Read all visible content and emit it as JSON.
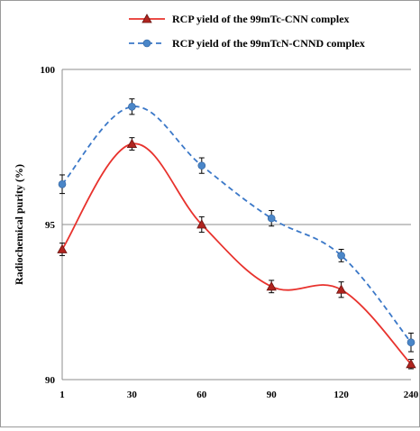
{
  "chart_data": {
    "type": "line",
    "title": "",
    "xlabel": "",
    "ylabel": "Radiochemical purity  (%)",
    "categories": [
      "1",
      "30",
      "60",
      "90",
      "120",
      "240"
    ],
    "ylim": [
      90,
      100
    ],
    "yticks": [
      90,
      95,
      100
    ],
    "grid": "horizontal",
    "legend_position": "top",
    "series": [
      {
        "name": "RCP yield of the 99mTc-CNN complex",
        "values": [
          94.2,
          97.6,
          95.0,
          93.0,
          92.9,
          90.5
        ],
        "errors": [
          0.2,
          0.2,
          0.25,
          0.2,
          0.25,
          0.15
        ],
        "color": "#e8322d",
        "marker": "triangle",
        "marker_color": "#b0241f",
        "line_style": "solid"
      },
      {
        "name": "RCP yield of the 99mTcN-CNND complex",
        "values": [
          96.3,
          98.8,
          96.9,
          95.2,
          94.0,
          91.2
        ],
        "errors": [
          0.3,
          0.25,
          0.25,
          0.25,
          0.2,
          0.3
        ],
        "color": "#3b78c8",
        "marker": "circle",
        "marker_color": "#4a86c8",
        "line_style": "dashed"
      }
    ]
  }
}
